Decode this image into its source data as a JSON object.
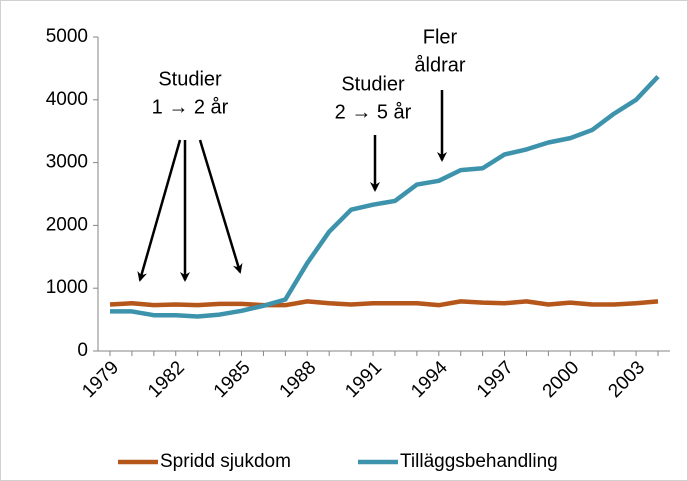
{
  "chart_data": {
    "type": "line",
    "categories": [
      1979,
      null,
      null,
      1982,
      null,
      null,
      1985,
      null,
      null,
      1988,
      null,
      null,
      1991,
      null,
      null,
      1994,
      null,
      null,
      1997,
      null,
      null,
      2000,
      null,
      null,
      2003,
      null
    ],
    "series": [
      {
        "name": "Spridd sjukdom",
        "color": "#b5561b",
        "values": [
          740,
          760,
          730,
          740,
          730,
          750,
          750,
          730,
          730,
          790,
          760,
          740,
          760,
          760,
          760,
          730,
          790,
          770,
          760,
          790,
          740,
          770,
          740,
          740,
          760,
          790
        ]
      },
      {
        "name": "Tilläggsbehandling",
        "color": "#3d93ac",
        "values": [
          630,
          630,
          570,
          570,
          550,
          580,
          640,
          720,
          820,
          1400,
          1900,
          2250,
          2330,
          2390,
          2650,
          2710,
          2880,
          2910,
          3130,
          3210,
          3320,
          3390,
          3520,
          3780,
          4000,
          4370
        ]
      }
    ],
    "ylim": [
      0,
      5000
    ],
    "yticks": [
      0,
      1000,
      2000,
      3000,
      4000,
      5000
    ],
    "annotations": [
      {
        "lines": [
          "Studier",
          "1 → 2 år"
        ]
      },
      {
        "lines": [
          "Studier",
          "2 → 5 år"
        ]
      },
      {
        "lines": [
          "Fler",
          "åldrar"
        ]
      }
    ],
    "legend": "bottom"
  }
}
